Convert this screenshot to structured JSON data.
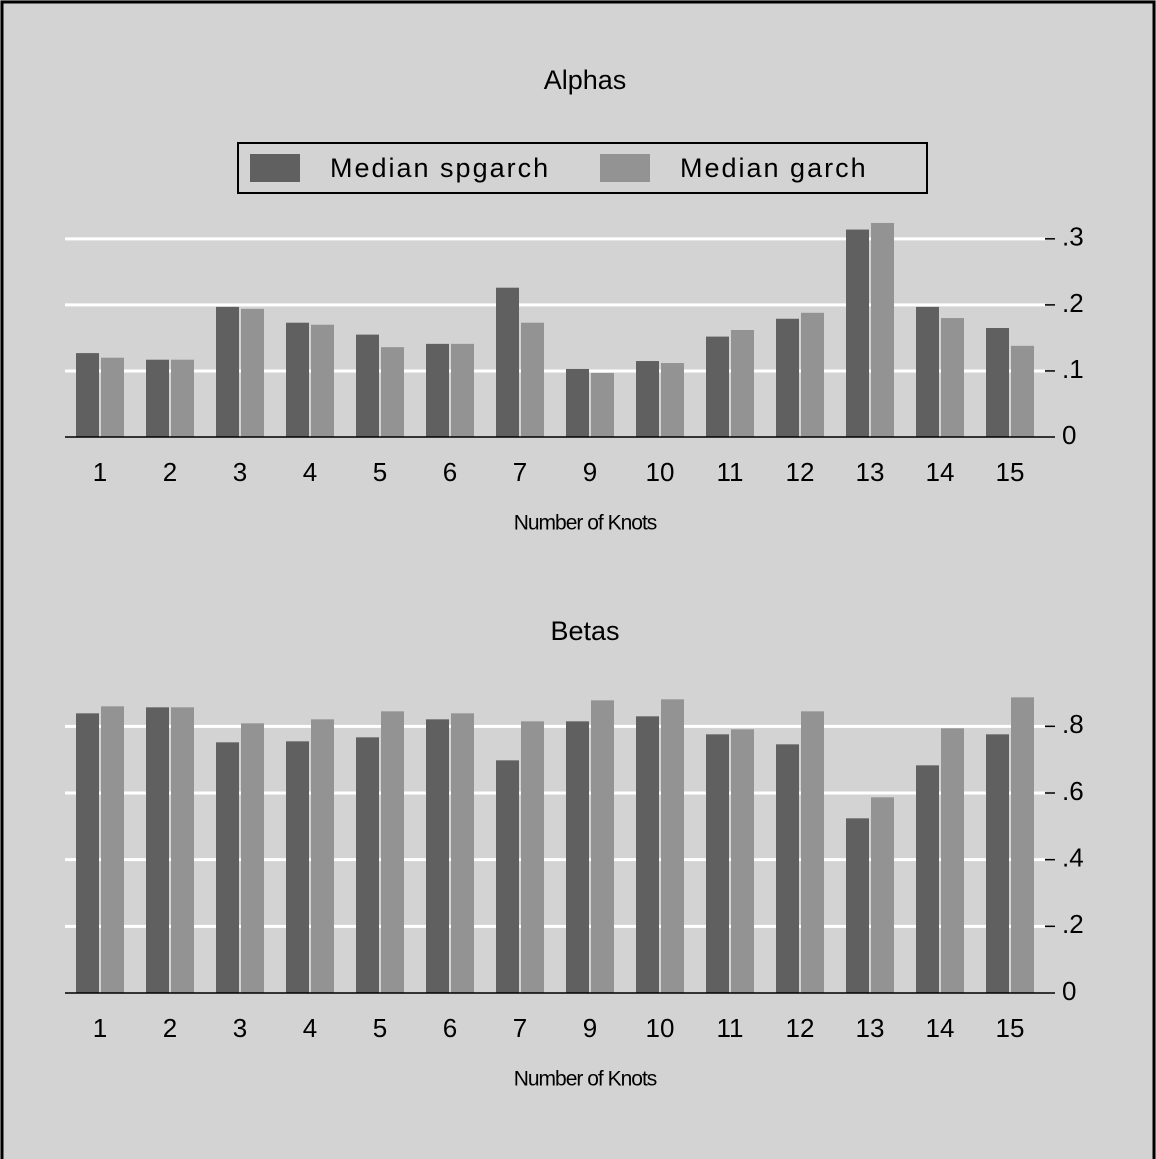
{
  "chart_data": [
    {
      "type": "bar",
      "title": "Alphas",
      "x_label": "Number of Knots",
      "categories": [
        "1",
        "2",
        "3",
        "4",
        "5",
        "6",
        "7",
        "9",
        "10",
        "11",
        "12",
        "13",
        "14",
        "15"
      ],
      "series": [
        {
          "name": "Median spgarch",
          "color": "#606060",
          "values": [
            0.127,
            0.117,
            0.197,
            0.173,
            0.155,
            0.141,
            0.226,
            0.103,
            0.115,
            0.152,
            0.179,
            0.314,
            0.197,
            0.165
          ]
        },
        {
          "name": "Median garch",
          "color": "#939393",
          "values": [
            0.12,
            0.117,
            0.194,
            0.17,
            0.136,
            0.141,
            0.173,
            0.097,
            0.112,
            0.162,
            0.188,
            0.324,
            0.18,
            0.138
          ]
        }
      ],
      "ylim": [
        0,
        0.33
      ],
      "yticks": [
        0,
        {
          "value": 0.1,
          "label": ".1"
        },
        {
          "value": 0.2,
          "label": ".2"
        },
        {
          "value": 0.3,
          "label": ".3"
        }
      ],
      "grid": true,
      "legend": "top"
    },
    {
      "type": "bar",
      "title": "Betas",
      "x_label": "Number of Knots",
      "categories": [
        "1",
        "2",
        "3",
        "4",
        "5",
        "6",
        "7",
        "9",
        "10",
        "11",
        "12",
        "13",
        "14",
        "15"
      ],
      "series": [
        {
          "color": "#606060",
          "values": [
            0.839,
            0.857,
            0.752,
            0.755,
            0.767,
            0.821,
            0.698,
            0.815,
            0.83,
            0.776,
            0.746,
            0.524,
            0.683,
            0.776
          ]
        },
        {
          "color": "#939393",
          "values": [
            0.86,
            0.857,
            0.809,
            0.821,
            0.845,
            0.839,
            0.815,
            0.878,
            0.881,
            0.791,
            0.845,
            0.587,
            0.794,
            0.887
          ]
        }
      ],
      "ylim": [
        0,
        0.9
      ],
      "yticks": [
        0,
        {
          "value": 0.2,
          "label": ".2"
        },
        {
          "value": 0.4,
          "label": ".4"
        },
        {
          "value": 0.6,
          "label": ".6"
        },
        {
          "value": 0.8,
          "label": ".8"
        }
      ],
      "grid": true
    }
  ]
}
